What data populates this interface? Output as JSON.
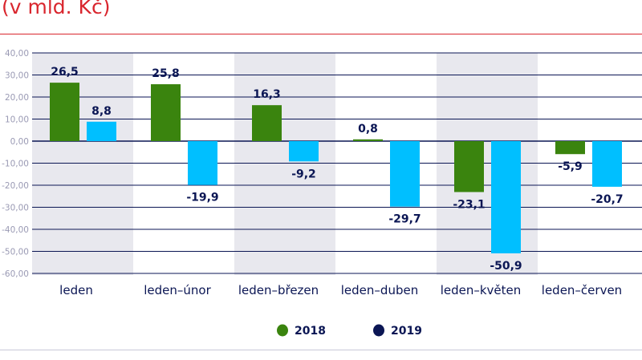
{
  "title": "(v mld. Kč)",
  "chart_data": {
    "type": "bar",
    "title": "(v mld. Kč)",
    "categories": [
      "leden",
      "leden–únor",
      "leden–březen",
      "leden–duben",
      "leden–květen",
      "leden–červen"
    ],
    "series": [
      {
        "name": "2018",
        "values": [
          26.5,
          25.8,
          16.3,
          0.8,
          -23.1,
          -5.9
        ],
        "color": "#3a840e",
        "legend_color": "#3a840e"
      },
      {
        "name": "2019",
        "values": [
          8.8,
          -19.9,
          -9.2,
          -29.7,
          -50.9,
          -20.7
        ],
        "color": "#00bfff",
        "legend_color": "#0b1654"
      }
    ],
    "data_labels": [
      [
        "26,5",
        "25,8",
        "16,3",
        "0,8",
        "-23,1",
        "-5,9"
      ],
      [
        "8,8",
        "-19,9",
        "-9,2",
        "-29,7",
        "-50,9",
        "-20,7"
      ]
    ],
    "ylim": [
      -60,
      40
    ],
    "yticks": [
      40,
      30,
      20,
      10,
      0,
      -10,
      -20,
      -30,
      -40,
      -50,
      -60
    ],
    "ytick_labels": [
      "40,00",
      "30,00",
      "20,00",
      "10,00",
      "0,00",
      "-10,00",
      "-20,00",
      "-30,00",
      "-40,00",
      "-50,00",
      "-60,00"
    ],
    "grid": true,
    "alternate_band_color": "#e8e8ee",
    "legend_position": "bottom",
    "xlabel": "",
    "ylabel": ""
  }
}
